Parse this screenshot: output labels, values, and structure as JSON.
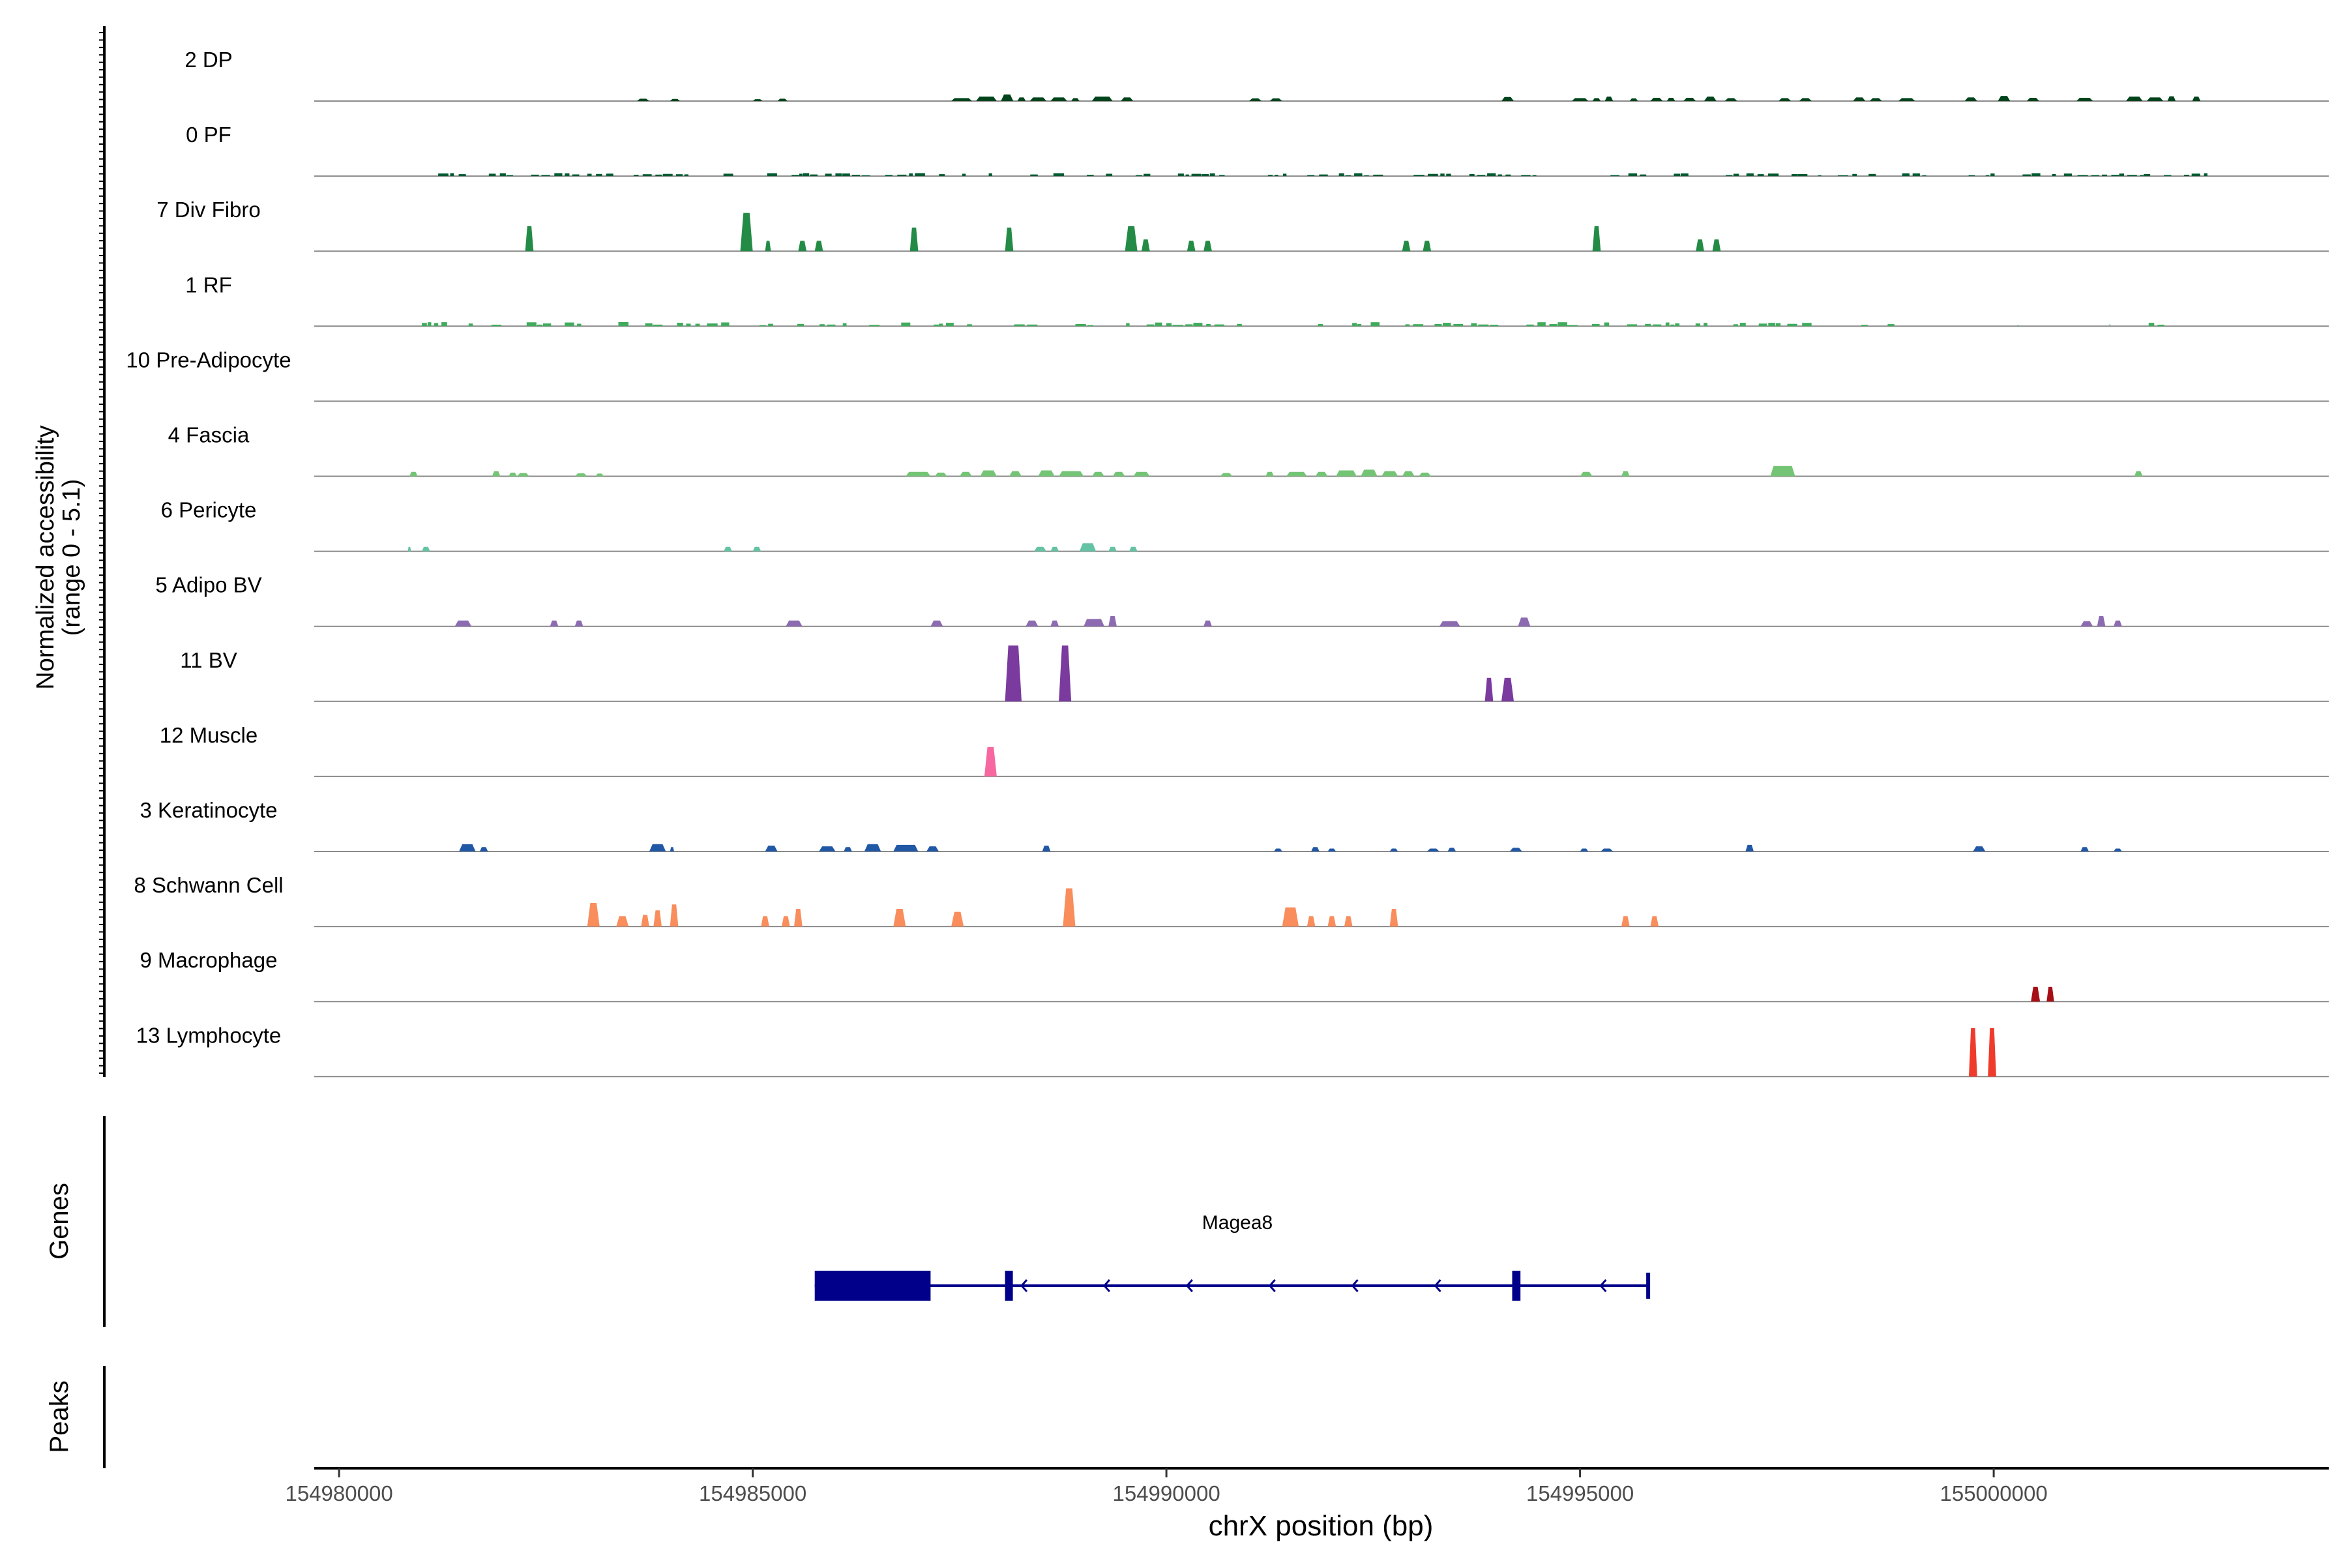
{
  "chart_data": {
    "type": "area",
    "title": "",
    "ylabel_line1": "Normalized accessibility",
    "ylabel_line2": "(range 0 - 5.1)",
    "yrange": [
      0,
      5.1
    ],
    "xlabel": "chrX position (bp)",
    "xlim": [
      154979700,
      155004050
    ],
    "xticks": [
      {
        "value": 154980000,
        "label": "154980000"
      },
      {
        "value": 154985000,
        "label": "154985000"
      },
      {
        "value": 154990000,
        "label": "154990000"
      },
      {
        "value": 154995000,
        "label": "154995000"
      },
      {
        "value": 155000000,
        "label": "155000000"
      }
    ],
    "series": [
      {
        "name": "2 DP",
        "color": "#00441b",
        "kind": "sparse",
        "peaks": [
          [
            154983600,
            154983750,
            0.16
          ],
          [
            154984000,
            154984120,
            0.14
          ],
          [
            154985000,
            154985120,
            0.13
          ],
          [
            154985300,
            154985420,
            0.16
          ],
          [
            154987400,
            154987650,
            0.2
          ],
          [
            154987700,
            154987950,
            0.3
          ],
          [
            154988000,
            154988150,
            0.45
          ],
          [
            154988200,
            154988300,
            0.25
          ],
          [
            154988350,
            154988550,
            0.25
          ],
          [
            154988600,
            154988800,
            0.25
          ],
          [
            154988850,
            154988950,
            0.2
          ],
          [
            154989100,
            154989350,
            0.3
          ],
          [
            154989450,
            154989600,
            0.25
          ],
          [
            154991000,
            154991150,
            0.18
          ],
          [
            154991250,
            154991400,
            0.18
          ],
          [
            154994050,
            154994200,
            0.28
          ],
          [
            154994900,
            154995100,
            0.2
          ],
          [
            154995150,
            154995250,
            0.2
          ],
          [
            154995300,
            154995400,
            0.3
          ],
          [
            154995600,
            154995700,
            0.18
          ],
          [
            154995850,
            154996000,
            0.22
          ],
          [
            154996050,
            154996150,
            0.22
          ],
          [
            154996250,
            154996400,
            0.22
          ],
          [
            154996500,
            154996650,
            0.3
          ],
          [
            154996750,
            154996900,
            0.2
          ],
          [
            154997400,
            154997550,
            0.2
          ],
          [
            154997650,
            154997800,
            0.2
          ],
          [
            154998300,
            154998450,
            0.25
          ],
          [
            154998500,
            154998650,
            0.2
          ],
          [
            154998850,
            154999050,
            0.2
          ],
          [
            154999650,
            154999800,
            0.25
          ],
          [
            155000050,
            155000200,
            0.35
          ],
          [
            155000400,
            155000550,
            0.22
          ],
          [
            155001000,
            155001200,
            0.22
          ],
          [
            155001600,
            155001800,
            0.3
          ],
          [
            155001850,
            155002050,
            0.25
          ],
          [
            155002100,
            155002200,
            0.32
          ],
          [
            155002400,
            155002500,
            0.3
          ]
        ]
      },
      {
        "name": "0 PF",
        "color": "#005a32",
        "kind": "noise",
        "noise": {
          "ranges": [
            [
              154981100,
              155002800
            ]
          ],
          "amp": 0.2,
          "seed": 7,
          "density": 0.55
        }
      },
      {
        "name": "7 Div Fibro",
        "color": "#238b45",
        "kind": "sparse",
        "peaks": [
          [
            154982250,
            154982350,
            1.7
          ],
          [
            154984850,
            154985000,
            2.6
          ],
          [
            154985150,
            154985220,
            0.7
          ],
          [
            154985550,
            154985650,
            0.7
          ],
          [
            154985750,
            154985850,
            0.7
          ],
          [
            154986900,
            154987000,
            1.6
          ],
          [
            154988050,
            154988150,
            1.6
          ],
          [
            154989500,
            154989650,
            1.7
          ],
          [
            154989700,
            154989800,
            0.8
          ],
          [
            154990250,
            154990350,
            0.7
          ],
          [
            154990450,
            154990550,
            0.7
          ],
          [
            154992850,
            154992950,
            0.7
          ],
          [
            154993100,
            154993200,
            0.7
          ],
          [
            154995150,
            154995250,
            1.7
          ],
          [
            154996400,
            154996500,
            0.8
          ],
          [
            154996600,
            154996700,
            0.8
          ]
        ]
      },
      {
        "name": "1 RF",
        "color": "#41ab5d",
        "kind": "noise",
        "noise": {
          "ranges": [
            [
              154981000,
              154988500
            ],
            [
              154988900,
              154989200
            ],
            [
              154989400,
              154991000
            ],
            [
              154991700,
              154998300
            ],
            [
              154998400,
              154998800
            ],
            [
              154999800,
              155000300
            ],
            [
              155001000,
              155001400
            ],
            [
              155001600,
              155002200
            ]
          ],
          "amp": 0.28,
          "seed": 13,
          "density": 0.5
        }
      },
      {
        "name": "10 Pre-Adipocyte",
        "color": "#74c476",
        "kind": "sparse",
        "peaks": []
      },
      {
        "name": "4 Fascia",
        "color": "#74c476",
        "kind": "sparse",
        "peaks": [
          [
            154980850,
            154980950,
            0.3
          ],
          [
            154981850,
            154981950,
            0.35
          ],
          [
            154982050,
            154982150,
            0.25
          ],
          [
            154982150,
            154982300,
            0.22
          ],
          [
            154982850,
            154983000,
            0.2
          ],
          [
            154983100,
            154983200,
            0.18
          ],
          [
            154986850,
            154987150,
            0.3
          ],
          [
            154987200,
            154987350,
            0.25
          ],
          [
            154987500,
            154987650,
            0.3
          ],
          [
            154987750,
            154987950,
            0.4
          ],
          [
            154988100,
            154988250,
            0.35
          ],
          [
            154988450,
            154988650,
            0.4
          ],
          [
            154988700,
            154989000,
            0.35
          ],
          [
            154989100,
            154989250,
            0.3
          ],
          [
            154989350,
            154989500,
            0.3
          ],
          [
            154989600,
            154989800,
            0.3
          ],
          [
            154990650,
            154990800,
            0.22
          ],
          [
            154991200,
            154991300,
            0.3
          ],
          [
            154991450,
            154991700,
            0.3
          ],
          [
            154991800,
            154991950,
            0.3
          ],
          [
            154992050,
            154992300,
            0.4
          ],
          [
            154992350,
            154992550,
            0.45
          ],
          [
            154992600,
            154992800,
            0.35
          ],
          [
            154992850,
            154993000,
            0.35
          ],
          [
            154993050,
            154993200,
            0.25
          ],
          [
            154995000,
            154995150,
            0.3
          ],
          [
            154995500,
            154995600,
            0.35
          ],
          [
            154997300,
            154997600,
            0.7
          ],
          [
            155001700,
            155001800,
            0.35
          ]
        ]
      },
      {
        "name": "6 Pericyte",
        "color": "#66c2a4",
        "kind": "sparse",
        "peaks": [
          [
            154980830,
            154980870,
            0.3
          ],
          [
            154981000,
            154981100,
            0.3
          ],
          [
            154984650,
            154984750,
            0.3
          ],
          [
            154985000,
            154985100,
            0.3
          ],
          [
            154988400,
            154988550,
            0.3
          ],
          [
            154988600,
            154988700,
            0.3
          ],
          [
            154988950,
            154989150,
            0.55
          ],
          [
            154989300,
            154989400,
            0.3
          ],
          [
            154989550,
            154989650,
            0.3
          ]
        ]
      },
      {
        "name": "5 Adipo BV",
        "color": "#8c6bb1",
        "kind": "sparse",
        "peaks": [
          [
            154981400,
            154981600,
            0.4
          ],
          [
            154982550,
            154982650,
            0.4
          ],
          [
            154982850,
            154982950,
            0.4
          ],
          [
            154985400,
            154985600,
            0.4
          ],
          [
            154987150,
            154987300,
            0.4
          ],
          [
            154988300,
            154988450,
            0.4
          ],
          [
            154988600,
            154988700,
            0.4
          ],
          [
            154989000,
            154989250,
            0.5
          ],
          [
            154989300,
            154989400,
            0.7
          ],
          [
            154990450,
            154990550,
            0.4
          ],
          [
            154993300,
            154993550,
            0.35
          ],
          [
            154994250,
            154994400,
            0.6
          ],
          [
            155001050,
            155001200,
            0.35
          ],
          [
            155001250,
            155001350,
            0.7
          ],
          [
            155001450,
            155001550,
            0.4
          ]
        ]
      },
      {
        "name": "11 BV",
        "color": "#7a3a9e",
        "kind": "sparse",
        "peaks": [
          [
            154988050,
            154988250,
            3.8
          ],
          [
            154988700,
            154988850,
            3.8
          ],
          [
            154993850,
            154993950,
            1.6
          ],
          [
            154994050,
            154994200,
            1.6
          ]
        ]
      },
      {
        "name": "12 Muscle",
        "color": "#f768a1",
        "kind": "sparse",
        "peaks": [
          [
            154987800,
            154987950,
            2.0
          ]
        ]
      },
      {
        "name": "3 Keratinocyte",
        "color": "#2158a6",
        "kind": "sparse",
        "peaks": [
          [
            154981450,
            154981650,
            0.5
          ],
          [
            154981700,
            154981800,
            0.3
          ],
          [
            154983750,
            154983950,
            0.5
          ],
          [
            154984000,
            154984050,
            0.3
          ],
          [
            154985150,
            154985300,
            0.4
          ],
          [
            154985800,
            154986000,
            0.35
          ],
          [
            154986100,
            154986200,
            0.3
          ],
          [
            154986350,
            154986550,
            0.5
          ],
          [
            154986700,
            154987000,
            0.45
          ],
          [
            154987100,
            154987250,
            0.35
          ],
          [
            154988500,
            154988600,
            0.4
          ],
          [
            154991300,
            154991400,
            0.2
          ],
          [
            154991750,
            154991850,
            0.3
          ],
          [
            154991950,
            154992050,
            0.2
          ],
          [
            154992700,
            154992800,
            0.2
          ],
          [
            154993150,
            154993300,
            0.2
          ],
          [
            154993400,
            154993500,
            0.25
          ],
          [
            154994150,
            154994300,
            0.25
          ],
          [
            154995000,
            154995100,
            0.2
          ],
          [
            154995250,
            154995400,
            0.2
          ],
          [
            154997000,
            154997100,
            0.45
          ],
          [
            154999750,
            154999900,
            0.35
          ],
          [
            155001050,
            155001150,
            0.3
          ],
          [
            155001450,
            155001550,
            0.2
          ]
        ]
      },
      {
        "name": "8 Schwann Cell",
        "color": "#f98d5c",
        "kind": "sparse",
        "peaks": [
          [
            154983000,
            154983150,
            1.6
          ],
          [
            154983350,
            154983500,
            0.7
          ],
          [
            154983650,
            154983750,
            0.8
          ],
          [
            154983800,
            154983900,
            1.1
          ],
          [
            154984000,
            154984100,
            1.5
          ],
          [
            154985100,
            154985200,
            0.7
          ],
          [
            154985350,
            154985450,
            0.7
          ],
          [
            154985500,
            154985600,
            1.2
          ],
          [
            154986700,
            154986850,
            1.2
          ],
          [
            154987400,
            154987550,
            1.0
          ],
          [
            154988750,
            154988900,
            2.6
          ],
          [
            154991400,
            154991600,
            1.3
          ],
          [
            154991700,
            154991800,
            0.7
          ],
          [
            154991950,
            154992050,
            0.7
          ],
          [
            154992150,
            154992250,
            0.7
          ],
          [
            154992700,
            154992800,
            1.2
          ],
          [
            154995500,
            154995600,
            0.7
          ],
          [
            154995850,
            154995950,
            0.7
          ]
        ]
      },
      {
        "name": "9 Macrophage",
        "color": "#a50f15",
        "kind": "sparse",
        "peaks": [
          [
            155000450,
            155000560,
            1.0
          ],
          [
            155000640,
            155000730,
            1.0
          ]
        ]
      },
      {
        "name": "13 Lymphocyte",
        "color": "#ef3b2c",
        "kind": "sparse",
        "peaks": [
          [
            154999700,
            154999800,
            3.3
          ],
          [
            154999930,
            155000030,
            3.3
          ]
        ]
      }
    ],
    "genes": {
      "label": "Genes",
      "name": "Magea8",
      "color": "#00008b",
      "strand": "-",
      "gene_start": 154985750,
      "gene_end": 154995820,
      "exons": [
        [
          154985750,
          154987150,
          "thick"
        ],
        [
          154988050,
          154988130,
          "thick"
        ],
        [
          154994180,
          154994280,
          "thick"
        ],
        [
          154995800,
          154995820,
          "thin"
        ]
      ]
    },
    "peaks_track": {
      "label": "Peaks",
      "items": []
    }
  }
}
